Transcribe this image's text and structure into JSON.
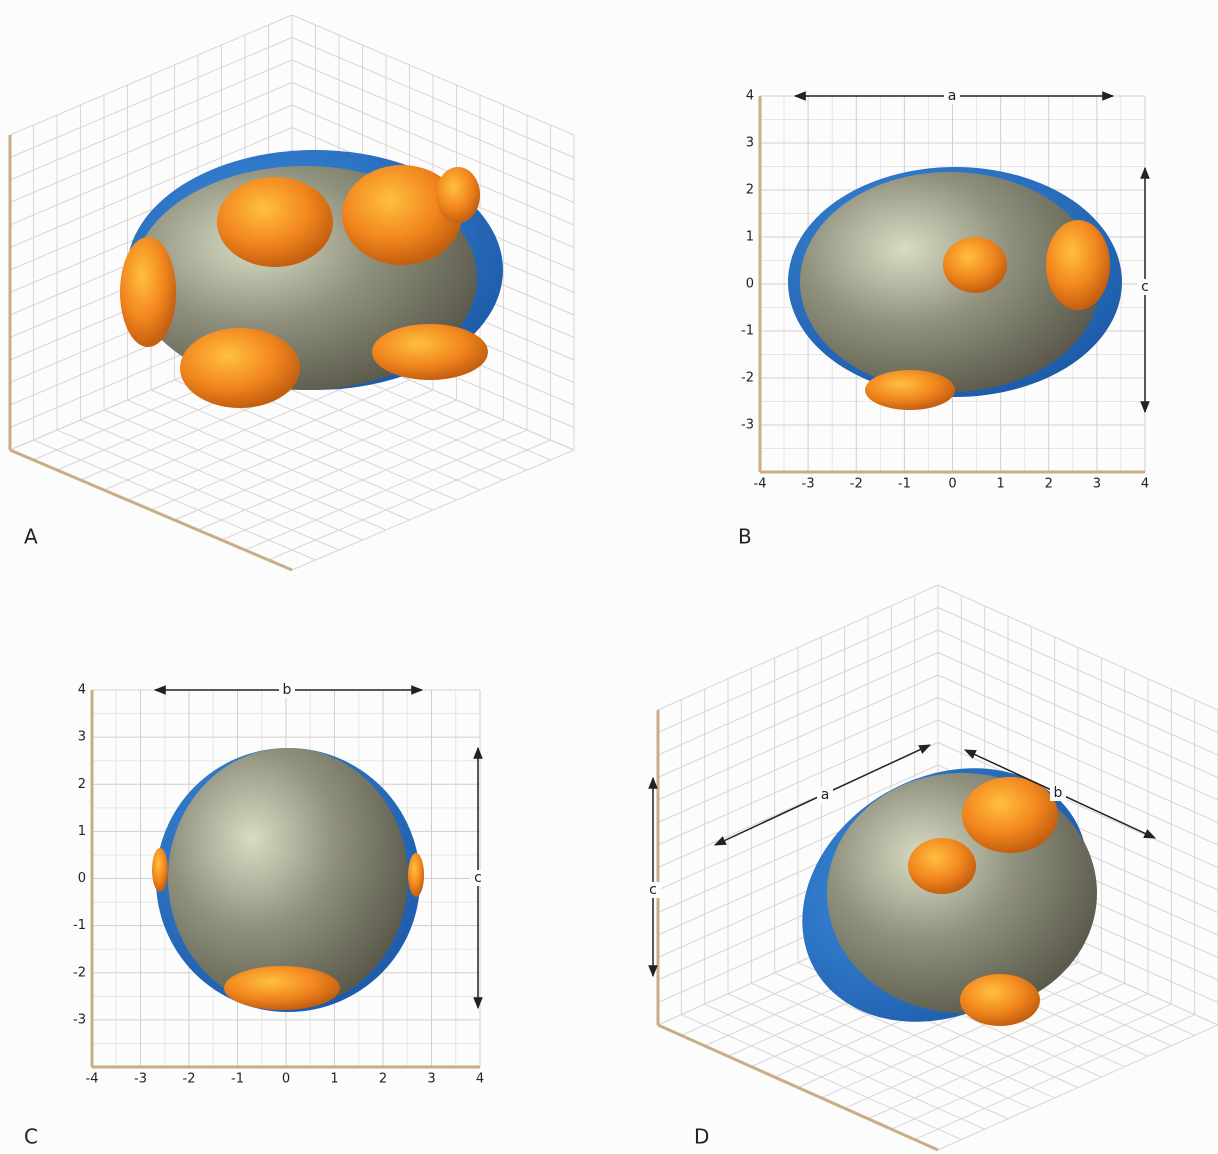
{
  "panels": [
    {
      "label": "A"
    },
    {
      "label": "B",
      "xticks": [
        -4,
        -3,
        -2,
        -1,
        0,
        1,
        2,
        3,
        4
      ],
      "yticks": [
        4,
        3,
        2,
        1,
        0,
        -1,
        -2,
        -3
      ],
      "dimensions": [
        "a",
        "c"
      ]
    },
    {
      "label": "C",
      "xticks": [
        -4,
        -3,
        -2,
        -1,
        0,
        1,
        2,
        3,
        4
      ],
      "yticks": [
        4,
        3,
        2,
        1,
        0,
        -1,
        -2,
        -3
      ],
      "dimensions": [
        "b",
        "c"
      ]
    },
    {
      "label": "D",
      "dimensions": [
        "a",
        "b",
        "c"
      ]
    }
  ]
}
